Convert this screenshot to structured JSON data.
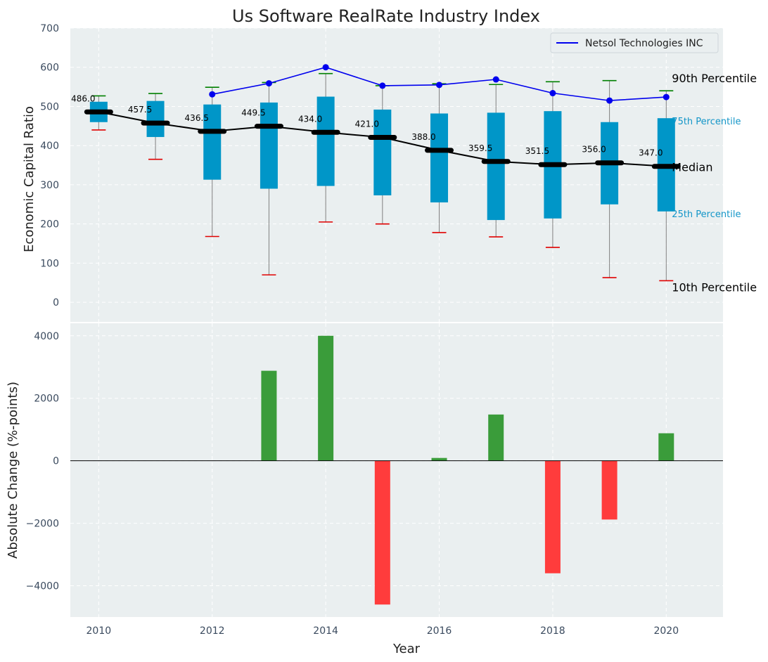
{
  "chart_data": [
    {
      "type": "box",
      "title": "Us Software RealRate Industry Index",
      "ylabel": "Economic Capital Ratio",
      "ylim": [
        -50,
        700
      ],
      "yticks": [
        0,
        100,
        200,
        300,
        400,
        500,
        600,
        700
      ],
      "years": [
        2010,
        2011,
        2012,
        2013,
        2014,
        2015,
        2016,
        2017,
        2018,
        2019,
        2020
      ],
      "p10": [
        440,
        365,
        168,
        70,
        205,
        200,
        178,
        167,
        140,
        63,
        55
      ],
      "p25": [
        460,
        422,
        313,
        290,
        297,
        273,
        255,
        210,
        214,
        250,
        232
      ],
      "median": [
        486.0,
        457.5,
        436.5,
        449.5,
        434.0,
        421.0,
        388.0,
        359.5,
        351.5,
        356.0,
        347.0
      ],
      "median_labels": [
        "486.0",
        "457.5",
        "436.5",
        "449.5",
        "434.0",
        "421.0",
        "388.0",
        "359.5",
        "351.5",
        "356.0",
        "347.0"
      ],
      "p75": [
        512,
        514,
        505,
        510,
        525,
        492,
        482,
        484,
        488,
        460,
        470
      ],
      "p90": [
        527,
        533,
        549,
        561,
        584,
        553,
        558,
        556,
        563,
        566,
        540
      ],
      "company": {
        "name": "Netsol Technologies INC",
        "years": [
          2012,
          2013,
          2014,
          2015,
          2016,
          2017,
          2018,
          2019,
          2020
        ],
        "values": [
          531,
          559,
          600,
          553,
          555,
          569,
          534,
          515,
          524
        ]
      },
      "legend": "top-right",
      "annotations": {
        "p90": "90th Percentile",
        "p75": "75th Percentile",
        "median": "Median",
        "p25": "25th Percentile",
        "p10": "10th Percentile"
      },
      "colors": {
        "background": "#eaeff0",
        "box": "#0096c8",
        "median": "#000000",
        "company": "#0000ee",
        "p90_cap": "#008000",
        "p10_cap": "#e00000",
        "whisker": "#808080"
      }
    },
    {
      "type": "bar",
      "ylabel": "Absolute Change (%-points)",
      "xlabel": "Year",
      "ylim": [
        -5000,
        4400
      ],
      "yticks": [
        -4000,
        -2000,
        0,
        2000,
        4000
      ],
      "ytick_labels": [
        "−4000",
        "−2000",
        "0",
        "2000",
        "4000"
      ],
      "xlim": [
        2009.5,
        2021
      ],
      "xticks": [
        2010,
        2012,
        2014,
        2016,
        2018,
        2020
      ],
      "years": [
        2013,
        2014,
        2015,
        2016,
        2017,
        2018,
        2019,
        2020
      ],
      "values": [
        2880,
        4000,
        -4600,
        90,
        1480,
        -3600,
        -1880,
        880
      ],
      "colors": {
        "positive": "#3a9c3a",
        "negative": "#ff3c3c",
        "background": "#eaeff0"
      }
    }
  ]
}
